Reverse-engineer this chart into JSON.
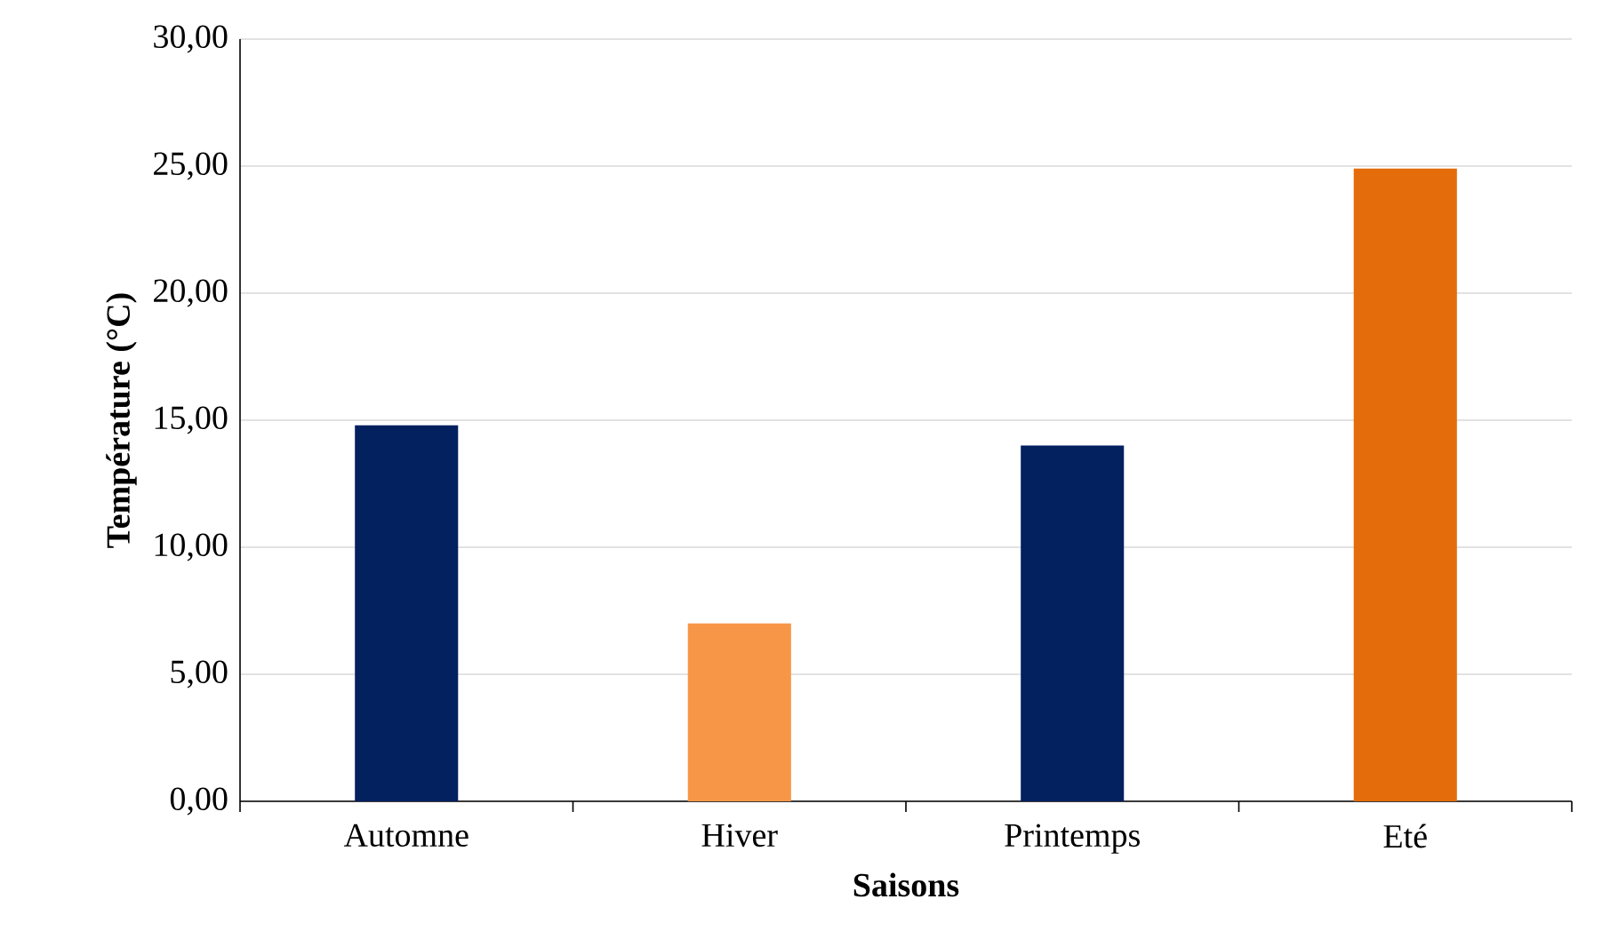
{
  "chart_data": {
    "type": "bar",
    "xlabel": "Saisons",
    "ylabel": "Température (°C)",
    "categories": [
      "Automne",
      "Hiver",
      "Printemps",
      "Eté"
    ],
    "values": [
      14.8,
      7.0,
      14.0,
      24.9
    ],
    "colors": [
      "#03205f",
      "#f79646",
      "#03205f",
      "#e46c0a"
    ],
    "ylim": [
      0,
      30
    ],
    "yticks": [
      {
        "value": 0,
        "label": "0,00"
      },
      {
        "value": 5,
        "label": "5,00"
      },
      {
        "value": 10,
        "label": "10,00"
      },
      {
        "value": 15,
        "label": "15,00"
      },
      {
        "value": 20,
        "label": "20,00"
      },
      {
        "value": 25,
        "label": "25,00"
      },
      {
        "value": 30,
        "label": "30,00"
      }
    ],
    "grid": "y"
  }
}
